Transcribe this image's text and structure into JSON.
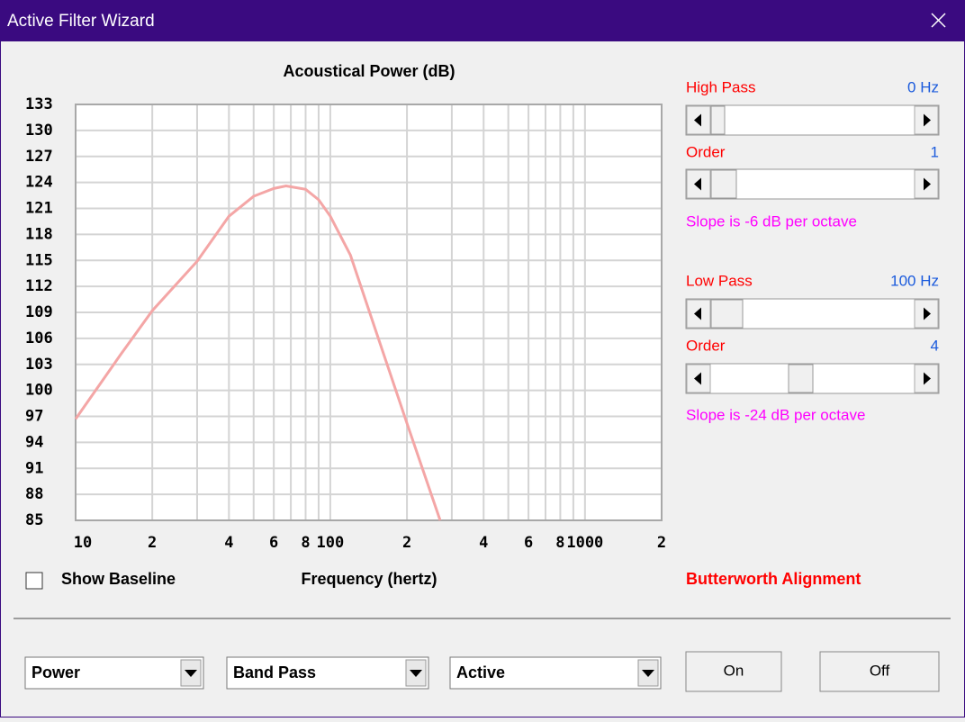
{
  "window": {
    "title": "Active Filter Wizard"
  },
  "chart_data": {
    "type": "line",
    "title": "Acoustical Power (dB)",
    "x_label": "Frequency (hertz)",
    "x_scale": "log",
    "grid": true,
    "xlim": [
      10,
      2000
    ],
    "xticks": [
      {
        "value": 10,
        "label": "10"
      },
      {
        "value": 20,
        "label": "2"
      },
      {
        "value": 40,
        "label": "4"
      },
      {
        "value": 60,
        "label": "6"
      },
      {
        "value": 80,
        "label": "8"
      },
      {
        "value": 100,
        "label": "100"
      },
      {
        "value": 200,
        "label": "2"
      },
      {
        "value": 400,
        "label": "4"
      },
      {
        "value": 600,
        "label": "6"
      },
      {
        "value": 800,
        "label": "8"
      },
      {
        "value": 1000,
        "label": "1000"
      },
      {
        "value": 2000,
        "label": "2"
      }
    ],
    "xgrid": [
      30,
      50,
      70,
      90,
      300,
      500,
      700,
      900
    ],
    "ylim": [
      85,
      133
    ],
    "yticks": [
      133,
      130,
      127,
      124,
      121,
      118,
      115,
      112,
      109,
      106,
      103,
      100,
      97,
      94,
      91,
      88,
      85
    ],
    "series": [
      {
        "color": "#f4a6a6",
        "x": [
          10,
          15,
          20,
          30,
          40,
          50,
          60,
          67,
          80,
          90,
          100,
          120,
          150,
          200,
          270
        ],
        "values": [
          96.7,
          104.1,
          109.2,
          114.9,
          120.1,
          122.4,
          123.3,
          123.6,
          123.2,
          122,
          120.1,
          115.6,
          107.1,
          96.2,
          85
        ]
      }
    ]
  },
  "baseline_checkbox": {
    "label": "Show Baseline"
  },
  "filters": {
    "high_pass": {
      "label": "High Pass",
      "value": "0 Hz",
      "order_label": "Order",
      "order": "1",
      "slope": "Slope is -6 dB per octave"
    },
    "low_pass": {
      "label": "Low Pass",
      "value": "100 Hz",
      "order_label": "Order",
      "order": "4",
      "slope": "Slope is -24 dB per octave"
    },
    "alignment": "Butterworth Alignment"
  },
  "dropdowns": [
    "Power",
    "Band Pass",
    "Active"
  ],
  "buttons": [
    "On",
    "Off"
  ]
}
